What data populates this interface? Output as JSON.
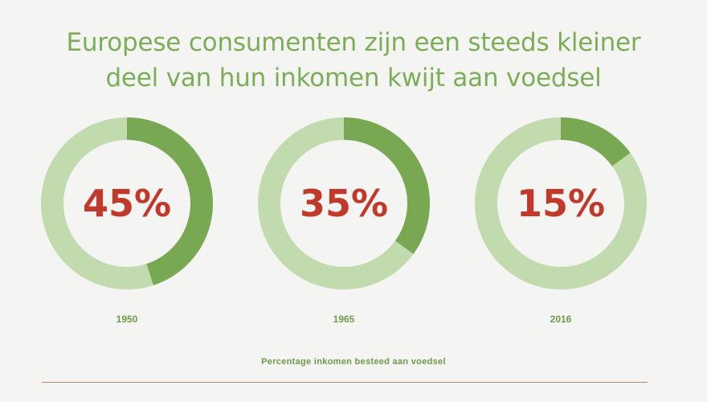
{
  "chart_data": {
    "type": "pie",
    "variant": "donut",
    "title_lines": [
      "Europese consumenten zijn een steeds kleiner",
      "deel van hun inkomen kwijt aan voedsel"
    ],
    "categories": [
      "1950",
      "1965",
      "2016"
    ],
    "values": [
      45,
      35,
      15
    ],
    "value_labels": [
      "45%",
      "35%",
      "15%"
    ],
    "unit": "%",
    "max": 100,
    "xlabel": "Percentage inkomen besteed aan voedsel",
    "colors": {
      "share": "#78a852",
      "remainder": "#c2dbae",
      "value_text": "#c0392b",
      "title_text": "#7cad58",
      "label_text": "#6e9a4c",
      "rule": "#b9897a",
      "background": "#f4f4f2"
    }
  }
}
